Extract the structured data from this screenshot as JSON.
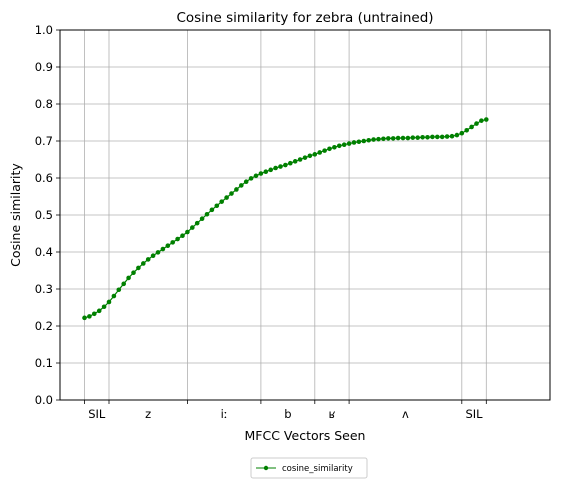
{
  "chart_data": {
    "type": "line",
    "title": "Cosine similarity for zebra (untrained)",
    "xlabel": "MFCC Vectors Seen",
    "ylabel": "Cosine similarity",
    "xlim": [
      -5,
      95
    ],
    "ylim": [
      0.0,
      1.0
    ],
    "yticks": [
      0.0,
      0.1,
      0.2,
      0.3,
      0.4,
      0.5,
      0.6,
      0.7,
      0.8,
      0.9,
      1.0
    ],
    "ytick_labels": [
      "0.0",
      "0.1",
      "0.2",
      "0.3",
      "0.4",
      "0.5",
      "0.6",
      "0.7",
      "0.8",
      "0.9",
      "1.0"
    ],
    "x_boundaries": [
      0,
      5,
      21,
      36,
      47,
      54,
      77,
      82
    ],
    "phone_labels": [
      {
        "label": "SIL",
        "x": 2.5
      },
      {
        "label": "z",
        "x": 13
      },
      {
        "label": "iː",
        "x": 28.5
      },
      {
        "label": "b",
        "x": 41.5
      },
      {
        "label": "ʁ",
        "x": 50.5
      },
      {
        "label": "ʌ",
        "x": 65.5
      },
      {
        "label": "SIL",
        "x": 79.5
      }
    ],
    "grid": true,
    "legend_position": "below",
    "series": [
      {
        "name": "cosine_similarity",
        "color": "#008000",
        "marker": "circle",
        "x": [
          0,
          1,
          2,
          3,
          4,
          5,
          6,
          7,
          8,
          9,
          10,
          11,
          12,
          13,
          14,
          15,
          16,
          17,
          18,
          19,
          20,
          21,
          22,
          23,
          24,
          25,
          26,
          27,
          28,
          29,
          30,
          31,
          32,
          33,
          34,
          35,
          36,
          37,
          38,
          39,
          40,
          41,
          42,
          43,
          44,
          45,
          46,
          47,
          48,
          49,
          50,
          51,
          52,
          53,
          54,
          55,
          56,
          57,
          58,
          59,
          60,
          61,
          62,
          63,
          64,
          65,
          66,
          67,
          68,
          69,
          70,
          71,
          72,
          73,
          74,
          75,
          76,
          77,
          78,
          79,
          80,
          81,
          82
        ],
        "values": [
          0.222,
          0.226,
          0.233,
          0.241,
          0.252,
          0.265,
          0.281,
          0.298,
          0.314,
          0.33,
          0.344,
          0.357,
          0.369,
          0.38,
          0.39,
          0.399,
          0.408,
          0.417,
          0.426,
          0.435,
          0.444,
          0.454,
          0.466,
          0.478,
          0.49,
          0.502,
          0.514,
          0.525,
          0.536,
          0.547,
          0.558,
          0.569,
          0.58,
          0.59,
          0.599,
          0.606,
          0.612,
          0.617,
          0.622,
          0.627,
          0.631,
          0.635,
          0.64,
          0.645,
          0.65,
          0.655,
          0.66,
          0.664,
          0.669,
          0.674,
          0.679,
          0.683,
          0.687,
          0.69,
          0.693,
          0.696,
          0.698,
          0.7,
          0.702,
          0.704,
          0.705,
          0.706,
          0.707,
          0.707,
          0.708,
          0.708,
          0.708,
          0.709,
          0.709,
          0.71,
          0.71,
          0.711,
          0.711,
          0.711,
          0.712,
          0.713,
          0.716,
          0.721,
          0.729,
          0.738,
          0.747,
          0.755,
          0.758
        ]
      }
    ]
  }
}
